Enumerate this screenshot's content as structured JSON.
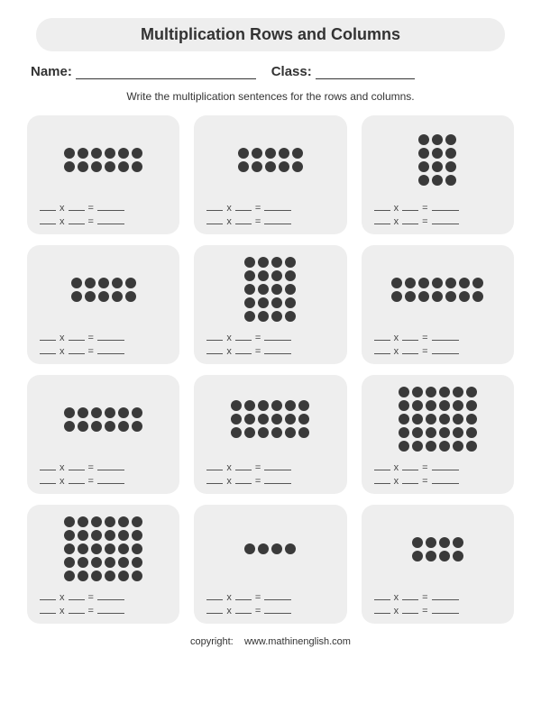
{
  "title": "Multiplication Rows and Columns",
  "nameLabel": "Name:",
  "classLabel": "Class:",
  "instruction": "Write the multiplication sentences for the rows and columns.",
  "equationTemplate": {
    "x": "x",
    "eq": "="
  },
  "copyrightLabel": "copyright:",
  "copyrightSite": "www.mathinenglish.com",
  "style": {
    "pageBg": "#ffffff",
    "boxBg": "#eeeeee",
    "dotColor": "#3a3a3a",
    "dotSize": 12,
    "dotGap": 3,
    "textColor": "#333333",
    "titleFontSize": 18,
    "bodyFontSize": 12,
    "eqFontSize": 11,
    "borderRadius": 14
  },
  "problems": [
    {
      "rows": 2,
      "cols": 6
    },
    {
      "rows": 2,
      "cols": 5
    },
    {
      "rows": 4,
      "cols": 3
    },
    {
      "rows": 2,
      "cols": 5
    },
    {
      "rows": 5,
      "cols": 4
    },
    {
      "rows": 2,
      "cols": 7
    },
    {
      "rows": 2,
      "cols": 6
    },
    {
      "rows": 3,
      "cols": 6
    },
    {
      "rows": 5,
      "cols": 6
    },
    {
      "rows": 5,
      "cols": 6
    },
    {
      "rows": 1,
      "cols": 4
    },
    {
      "rows": 2,
      "cols": 4
    }
  ]
}
